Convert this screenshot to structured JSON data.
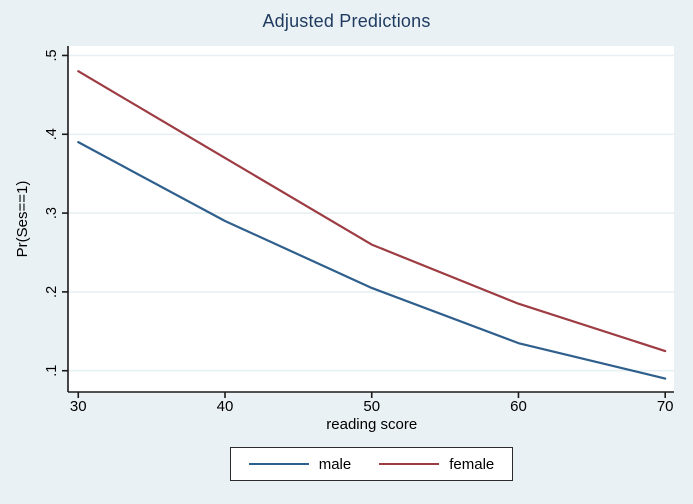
{
  "figure": {
    "title": "Adjusted Predictions",
    "title_color": "#1e3a5f",
    "background": "#eaf1f5",
    "plot_background": "#ffffff",
    "axis_color": "#1a1a1a",
    "tick_text_color": "#000000"
  },
  "axes": {
    "y_label": "Pr(Ses==1)",
    "x_label": "reading score",
    "y_tick_labels": [
      ".1",
      ".2",
      ".3",
      ".4",
      ".5"
    ],
    "x_tick_labels": [
      "30",
      "40",
      "50",
      "60",
      "70"
    ]
  },
  "legend": {
    "items": [
      {
        "label": "male",
        "color": "#2f5f8c"
      },
      {
        "label": "female",
        "color": "#9d3c43"
      }
    ]
  },
  "chart_data": {
    "type": "line",
    "title": "Adjusted Predictions",
    "xlabel": "reading score",
    "ylabel": "Pr(Ses==1)",
    "x": [
      30,
      40,
      50,
      60,
      70
    ],
    "series": [
      {
        "name": "male",
        "color": "#2f5f8c",
        "values": [
          0.39,
          0.29,
          0.205,
          0.135,
          0.09
        ]
      },
      {
        "name": "female",
        "color": "#9d3c43",
        "values": [
          0.48,
          0.37,
          0.26,
          0.185,
          0.125
        ]
      }
    ],
    "x_ticks": [
      30,
      40,
      50,
      60,
      70
    ],
    "y_ticks": [
      0.1,
      0.2,
      0.3,
      0.4,
      0.5
    ],
    "xlim": [
      29.3,
      70.6
    ],
    "ylim": [
      0.073,
      0.512
    ],
    "grid": true,
    "grid_color": "#e7f0f3",
    "legend_position": "bottom"
  }
}
